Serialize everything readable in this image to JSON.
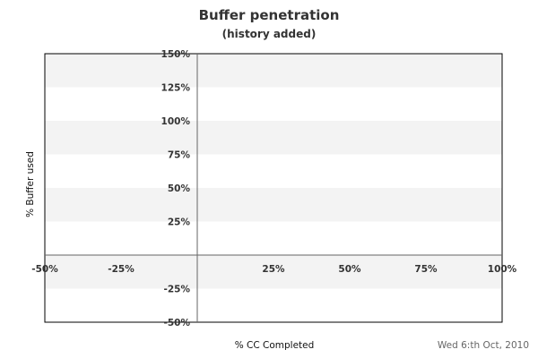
{
  "chart_data": {
    "type": "line",
    "title": "Buffer penetration",
    "subtitle": "(history added)",
    "xlabel": "% CC Completed",
    "ylabel": "% Buffer used",
    "footer": "Wed 6:th Oct, 2010",
    "xlim": [
      -50,
      100
    ],
    "ylim": [
      -50,
      150
    ],
    "x_ticks": [
      -50,
      -25,
      25,
      50,
      75,
      100
    ],
    "x_tick_labels": [
      "-50%",
      "-25%",
      "25%",
      "50%",
      "75%",
      "100%"
    ],
    "y_ticks": [
      150,
      125,
      100,
      75,
      50,
      25,
      -25,
      -50
    ],
    "y_tick_labels": [
      "150%",
      "125%",
      "100%",
      "75%",
      "50%",
      "25%",
      "-25%",
      "-50%"
    ],
    "grid": "alternating horizontal bands",
    "band_color": "#f3f3f3",
    "series": []
  }
}
